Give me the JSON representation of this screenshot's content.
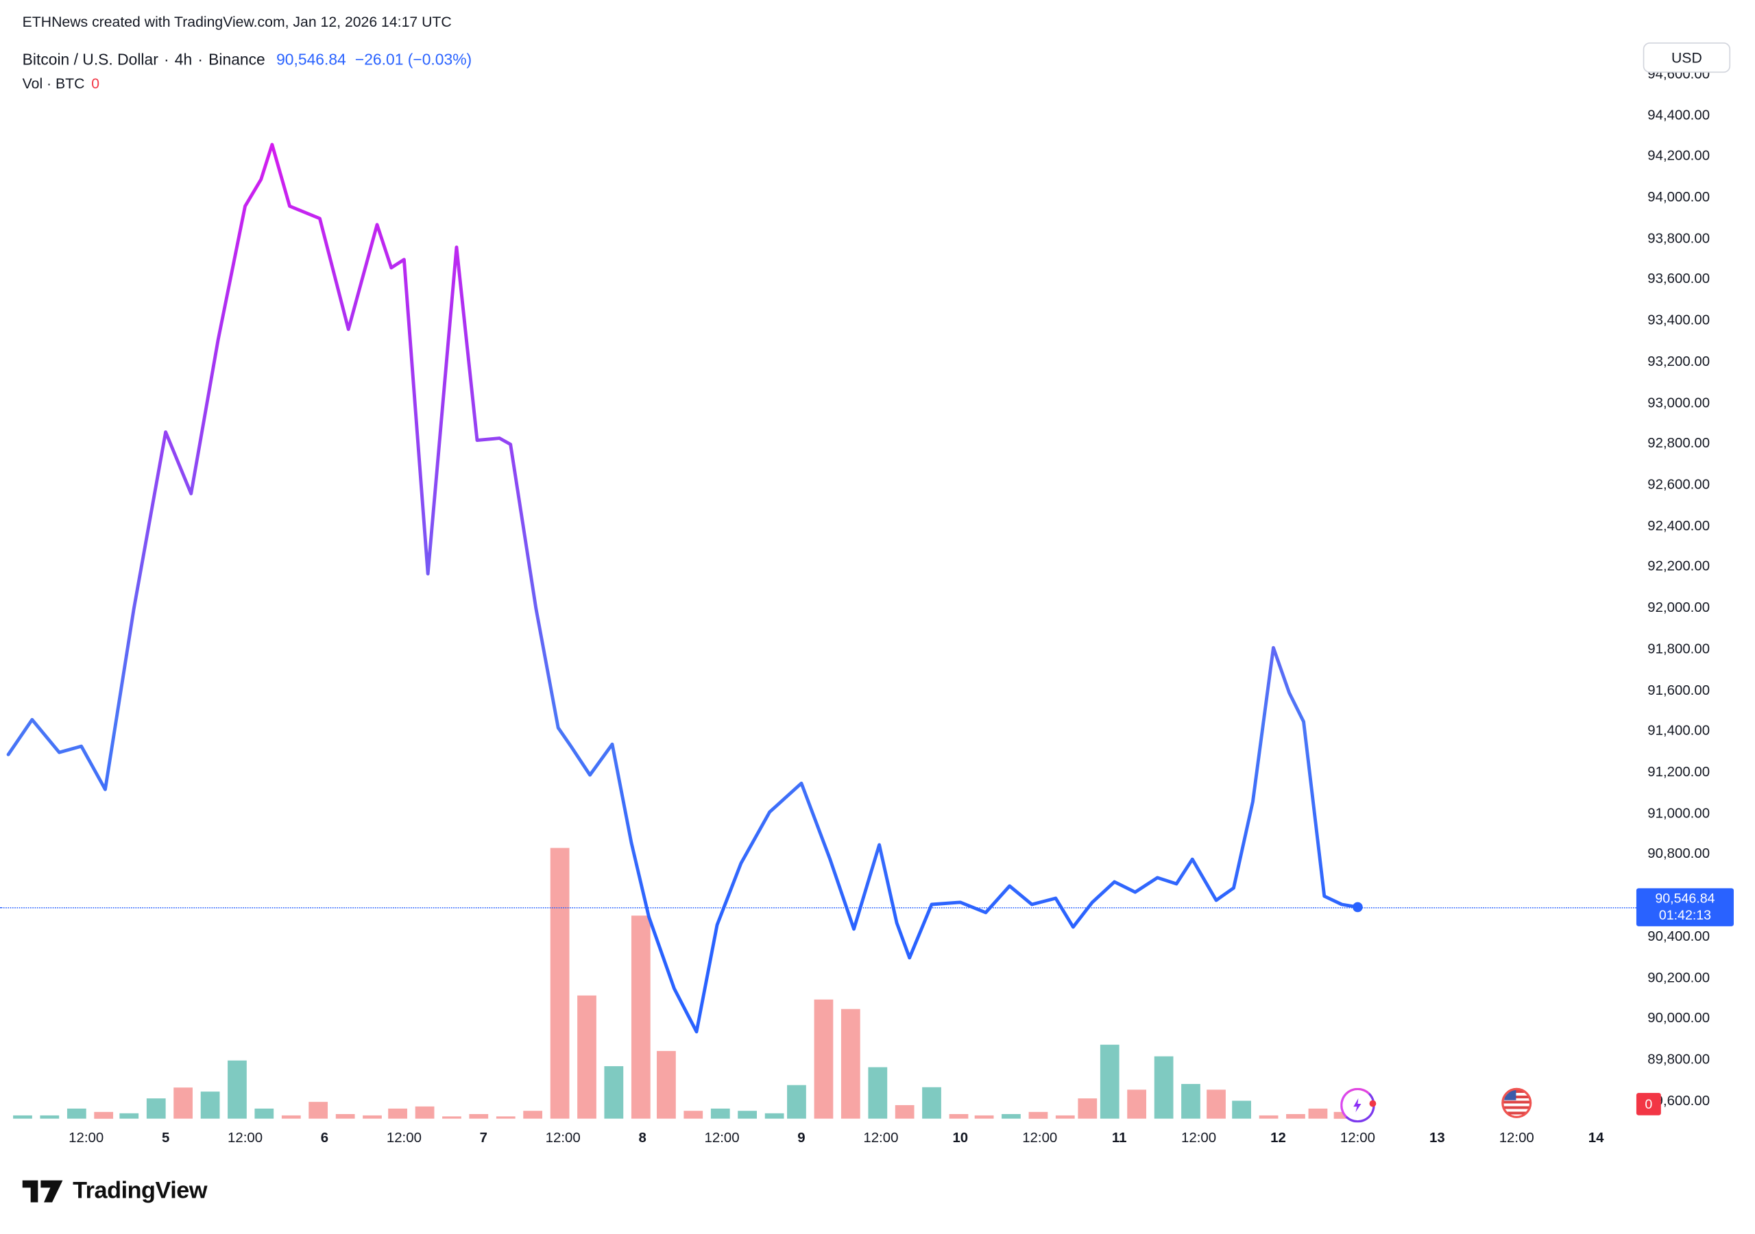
{
  "header": {
    "note": "ETHNews created with TradingView.com, Jan 12, 2026 14:17 UTC"
  },
  "toolbar": {
    "currency_button": "USD"
  },
  "legend": {
    "symbol": "Bitcoin / U.S. Dollar",
    "interval": "4h",
    "exchange": "Binance",
    "separator": "·",
    "price": "90,546.84",
    "change": "−26.01 (−0.03%)",
    "volume_label": "Vol · BTC",
    "volume_value": "0"
  },
  "price_label": {
    "price": "90,546.84",
    "countdown": "01:42:13"
  },
  "volume_badge": "0",
  "footer": {
    "brand": "TradingView"
  },
  "colors": {
    "accent_blue": "#2962FF",
    "down_red": "#F23645",
    "vol_up": "rgba(42,166,152,0.6)",
    "vol_down": "rgba(239,83,80,0.52)",
    "line_gradient": [
      [
        "0",
        "#DA18EE"
      ],
      [
        "0.28",
        "#A832F2"
      ],
      [
        "0.52",
        "#7E53F4"
      ],
      [
        "0.75",
        "#4A76F6"
      ],
      [
        "1",
        "#2962FF"
      ]
    ]
  },
  "chart_data": {
    "type": "line",
    "title": "Bitcoin / U.S. Dollar · 4h · Binance",
    "legend_position": "top-left",
    "grid": false,
    "current": {
      "price": 90546.84,
      "change": -26.01,
      "change_pct": -0.03,
      "countdown": "01:42:13"
    },
    "y_axis": {
      "label": "USD",
      "min": 89600,
      "max": 94600,
      "step": 200
    },
    "x_axis": {
      "unit": "day-of-january-2026",
      "range": [
        4.0,
        14.65
      ],
      "ticks": [
        {
          "d": 4.5,
          "label": "12:00",
          "kind": "hour"
        },
        {
          "d": 5,
          "label": "5",
          "kind": "day"
        },
        {
          "d": 5.5,
          "label": "12:00",
          "kind": "hour"
        },
        {
          "d": 6,
          "label": "6",
          "kind": "day"
        },
        {
          "d": 6.5,
          "label": "12:00",
          "kind": "hour"
        },
        {
          "d": 7,
          "label": "7",
          "kind": "day"
        },
        {
          "d": 7.5,
          "label": "12:00",
          "kind": "hour"
        },
        {
          "d": 8,
          "label": "8",
          "kind": "day"
        },
        {
          "d": 8.5,
          "label": "12:00",
          "kind": "hour"
        },
        {
          "d": 9,
          "label": "9",
          "kind": "day"
        },
        {
          "d": 9.5,
          "label": "12:00",
          "kind": "hour"
        },
        {
          "d": 10,
          "label": "10",
          "kind": "day"
        },
        {
          "d": 10.5,
          "label": "12:00",
          "kind": "hour"
        },
        {
          "d": 11,
          "label": "11",
          "kind": "day"
        },
        {
          "d": 11.5,
          "label": "12:00",
          "kind": "hour"
        },
        {
          "d": 12,
          "label": "12",
          "kind": "day",
          "current": true
        },
        {
          "d": 12.5,
          "label": "12:00",
          "kind": "hour"
        },
        {
          "d": 13,
          "label": "13",
          "kind": "day"
        },
        {
          "d": 13.5,
          "label": "12:00",
          "kind": "hour"
        },
        {
          "d": 14,
          "label": "14",
          "kind": "day"
        }
      ]
    },
    "price_line": [
      [
        4.01,
        91290
      ],
      [
        4.16,
        91460
      ],
      [
        4.33,
        91300
      ],
      [
        4.47,
        91330
      ],
      [
        4.62,
        91120
      ],
      [
        4.8,
        92000
      ],
      [
        5.0,
        92860
      ],
      [
        5.16,
        92560
      ],
      [
        5.33,
        93310
      ],
      [
        5.5,
        93960
      ],
      [
        5.6,
        94090
      ],
      [
        5.67,
        94260
      ],
      [
        5.78,
        93960
      ],
      [
        5.97,
        93900
      ],
      [
        6.15,
        93360
      ],
      [
        6.33,
        93870
      ],
      [
        6.42,
        93660
      ],
      [
        6.5,
        93700
      ],
      [
        6.65,
        92170
      ],
      [
        6.83,
        93760
      ],
      [
        6.96,
        92820
      ],
      [
        7.1,
        92830
      ],
      [
        7.17,
        92800
      ],
      [
        7.33,
        92000
      ],
      [
        7.47,
        91420
      ],
      [
        7.55,
        91330
      ],
      [
        7.67,
        91190
      ],
      [
        7.81,
        91340
      ],
      [
        7.93,
        90860
      ],
      [
        8.04,
        90500
      ],
      [
        8.2,
        90150
      ],
      [
        8.34,
        89940
      ],
      [
        8.47,
        90460
      ],
      [
        8.62,
        90760
      ],
      [
        8.8,
        91010
      ],
      [
        9.0,
        91150
      ],
      [
        9.18,
        90780
      ],
      [
        9.33,
        90440
      ],
      [
        9.49,
        90850
      ],
      [
        9.6,
        90470
      ],
      [
        9.68,
        90300
      ],
      [
        9.82,
        90560
      ],
      [
        10.0,
        90570
      ],
      [
        10.16,
        90520
      ],
      [
        10.31,
        90650
      ],
      [
        10.45,
        90560
      ],
      [
        10.6,
        90590
      ],
      [
        10.71,
        90450
      ],
      [
        10.83,
        90570
      ],
      [
        10.97,
        90670
      ],
      [
        11.1,
        90620
      ],
      [
        11.24,
        90690
      ],
      [
        11.36,
        90660
      ],
      [
        11.46,
        90780
      ],
      [
        11.61,
        90580
      ],
      [
        11.72,
        90640
      ],
      [
        11.84,
        91060
      ],
      [
        11.97,
        91810
      ],
      [
        12.07,
        91590
      ],
      [
        12.16,
        91450
      ],
      [
        12.29,
        90600
      ],
      [
        12.4,
        90560
      ],
      [
        12.5,
        90546.84
      ]
    ],
    "volume_bars_note": "v = percent of tallest visible bar; c: g=up(teal) r=down(red)",
    "volume_bars": [
      [
        4.1,
        1.2,
        "g"
      ],
      [
        4.27,
        1.2,
        "g"
      ],
      [
        4.44,
        3.7,
        "g"
      ],
      [
        4.61,
        2.5,
        "r"
      ],
      [
        4.77,
        2.0,
        "g"
      ],
      [
        4.94,
        7.5,
        "g"
      ],
      [
        5.11,
        11.5,
        "r"
      ],
      [
        5.28,
        10,
        "g"
      ],
      [
        5.45,
        21.5,
        "g"
      ],
      [
        5.62,
        3.7,
        "g"
      ],
      [
        5.79,
        1.2,
        "r"
      ],
      [
        5.96,
        6.2,
        "r"
      ],
      [
        6.13,
        1.7,
        "r"
      ],
      [
        6.3,
        1.2,
        "r"
      ],
      [
        6.46,
        3.7,
        "r"
      ],
      [
        6.63,
        4.5,
        "r"
      ],
      [
        6.8,
        0.8,
        "r"
      ],
      [
        6.97,
        1.7,
        "r"
      ],
      [
        7.14,
        0.8,
        "r"
      ],
      [
        7.31,
        2.9,
        "r"
      ],
      [
        7.48,
        100,
        "r"
      ],
      [
        7.65,
        45.5,
        "r"
      ],
      [
        7.82,
        19.4,
        "g"
      ],
      [
        7.99,
        75,
        "r"
      ],
      [
        8.15,
        25,
        "r"
      ],
      [
        8.32,
        2.9,
        "r"
      ],
      [
        8.49,
        3.7,
        "g"
      ],
      [
        8.66,
        2.9,
        "g"
      ],
      [
        8.83,
        2.0,
        "g"
      ],
      [
        8.97,
        12.4,
        "g"
      ],
      [
        9.14,
        44,
        "r"
      ],
      [
        9.31,
        40.5,
        "r"
      ],
      [
        9.48,
        19,
        "g"
      ],
      [
        9.65,
        5,
        "r"
      ],
      [
        9.82,
        11.6,
        "g"
      ],
      [
        9.99,
        1.7,
        "r"
      ],
      [
        10.15,
        1.2,
        "r"
      ],
      [
        10.32,
        1.7,
        "g"
      ],
      [
        10.49,
        2.5,
        "r"
      ],
      [
        10.66,
        1.2,
        "r"
      ],
      [
        10.8,
        7.5,
        "r"
      ],
      [
        10.94,
        27.3,
        "g"
      ],
      [
        11.11,
        10.7,
        "r"
      ],
      [
        11.28,
        23,
        "g"
      ],
      [
        11.45,
        12.8,
        "g"
      ],
      [
        11.61,
        10.7,
        "r"
      ],
      [
        11.77,
        6.6,
        "g"
      ],
      [
        11.94,
        1.2,
        "r"
      ],
      [
        12.11,
        1.7,
        "r"
      ],
      [
        12.25,
        3.7,
        "r"
      ],
      [
        12.41,
        2.5,
        "r"
      ]
    ],
    "events": [
      {
        "d": 12.5,
        "type": "ai-pulse"
      },
      {
        "d": 13.5,
        "type": "us-flag"
      }
    ]
  }
}
